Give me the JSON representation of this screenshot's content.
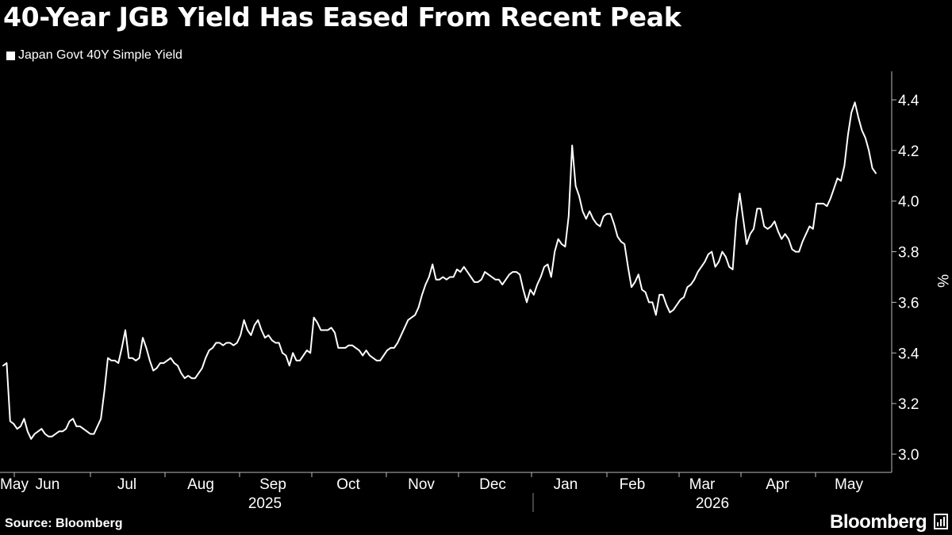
{
  "header": {
    "title": "40-Year JGB Yield Has Eased From Recent Peak"
  },
  "footer": {
    "source": "Source: Bloomberg",
    "brand": "Bloomberg",
    "brand_icon": "bar-chart-icon"
  },
  "chart_data": {
    "type": "line",
    "title": "40-Year JGB Yield Has Eased From Recent Peak",
    "ylabel": "%",
    "xlabel": "",
    "ylim": [
      2.95,
      4.52
    ],
    "yticks": [
      3.0,
      3.2,
      3.4,
      3.6,
      3.8,
      4.0,
      4.2,
      4.4
    ],
    "ytick_labels": [
      "3.0",
      "3.2",
      "3.4",
      "3.6",
      "3.8",
      "4.0",
      "4.2",
      "4.4"
    ],
    "y_axis_position": "right",
    "grid": false,
    "legend_position": "top-left",
    "month_labels": [
      "May",
      "Jun",
      "Jul",
      "Aug",
      "Sep",
      "Oct",
      "Nov",
      "Dec",
      "Jan",
      "Feb",
      "Mar",
      "Apr",
      "May"
    ],
    "year_labels": [
      "2025",
      "2026"
    ],
    "series": [
      {
        "name": "Japan Govt 40Y Simple Yield",
        "color": "#ffffff",
        "values": [
          3.35,
          3.36,
          3.13,
          3.12,
          3.1,
          3.11,
          3.14,
          3.09,
          3.06,
          3.08,
          3.09,
          3.1,
          3.08,
          3.07,
          3.07,
          3.08,
          3.09,
          3.09,
          3.1,
          3.13,
          3.14,
          3.11,
          3.11,
          3.1,
          3.09,
          3.08,
          3.08,
          3.11,
          3.14,
          3.25,
          3.38,
          3.37,
          3.37,
          3.36,
          3.42,
          3.49,
          3.38,
          3.38,
          3.37,
          3.38,
          3.46,
          3.42,
          3.37,
          3.33,
          3.34,
          3.36,
          3.36,
          3.37,
          3.38,
          3.36,
          3.35,
          3.32,
          3.3,
          3.31,
          3.3,
          3.3,
          3.32,
          3.34,
          3.38,
          3.41,
          3.42,
          3.44,
          3.44,
          3.43,
          3.44,
          3.44,
          3.43,
          3.44,
          3.47,
          3.53,
          3.49,
          3.47,
          3.51,
          3.53,
          3.49,
          3.46,
          3.47,
          3.45,
          3.44,
          3.44,
          3.4,
          3.39,
          3.35,
          3.4,
          3.37,
          3.37,
          3.39,
          3.41,
          3.4,
          3.54,
          3.52,
          3.49,
          3.49,
          3.49,
          3.5,
          3.48,
          3.42,
          3.42,
          3.42,
          3.43,
          3.43,
          3.42,
          3.41,
          3.39,
          3.41,
          3.39,
          3.38,
          3.37,
          3.37,
          3.39,
          3.41,
          3.42,
          3.42,
          3.44,
          3.47,
          3.5,
          3.53,
          3.54,
          3.55,
          3.58,
          3.63,
          3.67,
          3.7,
          3.75,
          3.69,
          3.69,
          3.7,
          3.69,
          3.7,
          3.7,
          3.73,
          3.72,
          3.74,
          3.72,
          3.7,
          3.68,
          3.68,
          3.69,
          3.72,
          3.71,
          3.7,
          3.69,
          3.69,
          3.67,
          3.69,
          3.71,
          3.72,
          3.72,
          3.71,
          3.65,
          3.6,
          3.65,
          3.63,
          3.67,
          3.7,
          3.74,
          3.75,
          3.7,
          3.8,
          3.85,
          3.83,
          3.82,
          3.94,
          4.22,
          4.06,
          4.02,
          3.96,
          3.93,
          3.96,
          3.93,
          3.91,
          3.9,
          3.94,
          3.95,
          3.95,
          3.91,
          3.86,
          3.84,
          3.83,
          3.74,
          3.66,
          3.68,
          3.71,
          3.65,
          3.64,
          3.6,
          3.6,
          3.55,
          3.63,
          3.63,
          3.59,
          3.56,
          3.57,
          3.59,
          3.61,
          3.62,
          3.66,
          3.67,
          3.69,
          3.72,
          3.74,
          3.76,
          3.79,
          3.8,
          3.74,
          3.76,
          3.8,
          3.78,
          3.74,
          3.73,
          3.92,
          4.03,
          3.93,
          3.83,
          3.87,
          3.89,
          3.97,
          3.97,
          3.9,
          3.89,
          3.9,
          3.92,
          3.88,
          3.85,
          3.87,
          3.85,
          3.81,
          3.8,
          3.8,
          3.84,
          3.87,
          3.9,
          3.89,
          3.99,
          3.99,
          3.99,
          3.98,
          4.01,
          4.05,
          4.09,
          4.08,
          4.14,
          4.26,
          4.35,
          4.39,
          4.33,
          4.28,
          4.25,
          4.2,
          4.13,
          4.11
        ]
      }
    ]
  }
}
